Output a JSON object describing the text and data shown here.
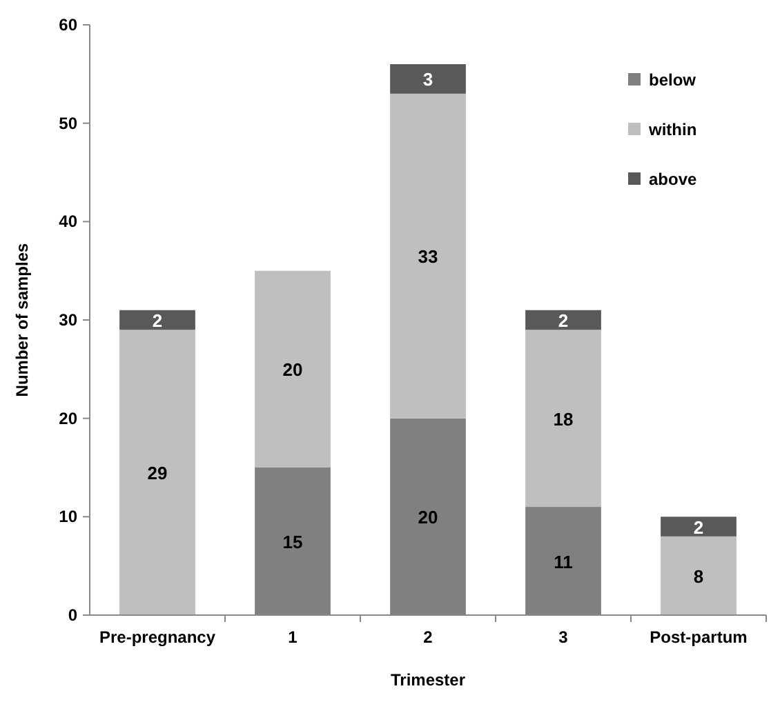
{
  "chart_data": {
    "type": "bar",
    "stacked": true,
    "xlabel": "Trimester",
    "ylabel": "Number of samples",
    "categories": [
      "Pre-pregnancy",
      "1",
      "2",
      "3",
      "Post-partum"
    ],
    "series": [
      {
        "name": "below",
        "color": "#808080",
        "values": [
          0,
          15,
          20,
          11,
          0
        ],
        "value_labels": [
          null,
          "15",
          "20",
          "11",
          null
        ]
      },
      {
        "name": "within",
        "color": "#bfbfbf",
        "values": [
          29,
          20,
          33,
          18,
          8
        ],
        "value_labels": [
          "29",
          "20",
          "33",
          "18",
          "8"
        ]
      },
      {
        "name": "above",
        "color": "#595959",
        "values": [
          2,
          0,
          3,
          2,
          2
        ],
        "value_labels": [
          "2",
          null,
          "3",
          "2",
          "2"
        ]
      }
    ],
    "ylim": [
      0,
      60
    ],
    "yticks": [
      0,
      10,
      20,
      30,
      40,
      50,
      60
    ],
    "grid": false,
    "legend": "top right"
  }
}
